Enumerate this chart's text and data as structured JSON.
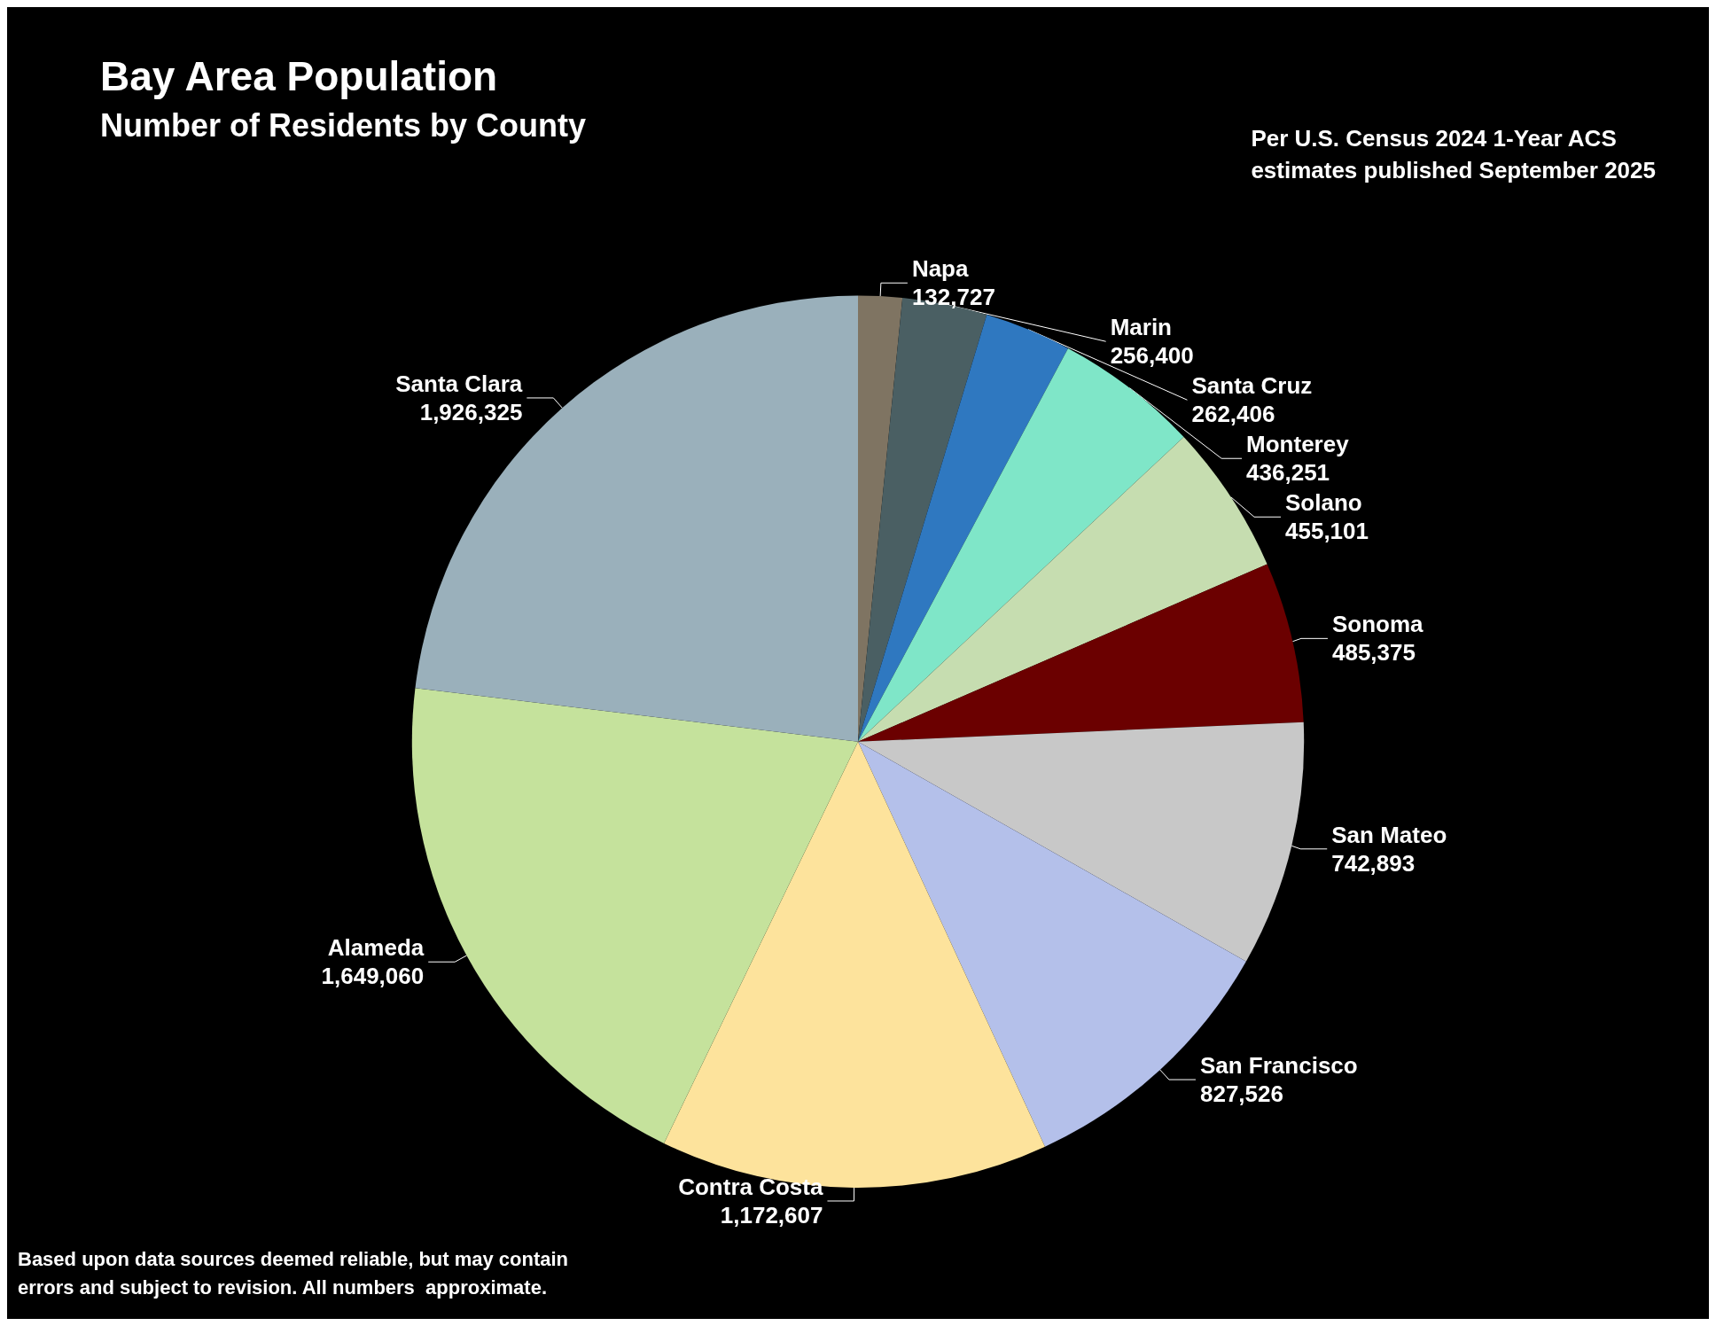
{
  "chart_data": {
    "type": "pie",
    "title": "Bay Area Population",
    "subtitle": "Number of Residents by County",
    "annotations": [
      "Per U.S. Census 2024 1-Year ACS estimates published September 2025",
      "Based upon data sources deemed reliable, but may contain errors and subject to revision. All numbers  approximate."
    ],
    "categories": [
      "Napa",
      "Marin",
      "Santa Cruz",
      "Monterey",
      "Solano",
      "Sonoma",
      "San Mateo",
      "San Francisco",
      "Contra Costa",
      "Alameda",
      "Santa Clara"
    ],
    "values": [
      132727,
      256400,
      262406,
      436251,
      455101,
      485375,
      742893,
      827526,
      1172607,
      1649060,
      1926325
    ],
    "colors": [
      "#7f7462",
      "#4a5f63",
      "#2f78c0",
      "#7fe6c8",
      "#c6ddb0",
      "#6b0000",
      "#c8c8c8",
      "#b4c0ea",
      "#fde39c",
      "#c5e29c",
      "#9ab0bb"
    ],
    "value_labels": [
      "132,727",
      "256,400",
      "262,406",
      "436,251",
      "455,101",
      "485,375",
      "742,893",
      "827,526",
      "1,172,607",
      "1,649,060",
      "1,926,325"
    ],
    "legend": false
  }
}
